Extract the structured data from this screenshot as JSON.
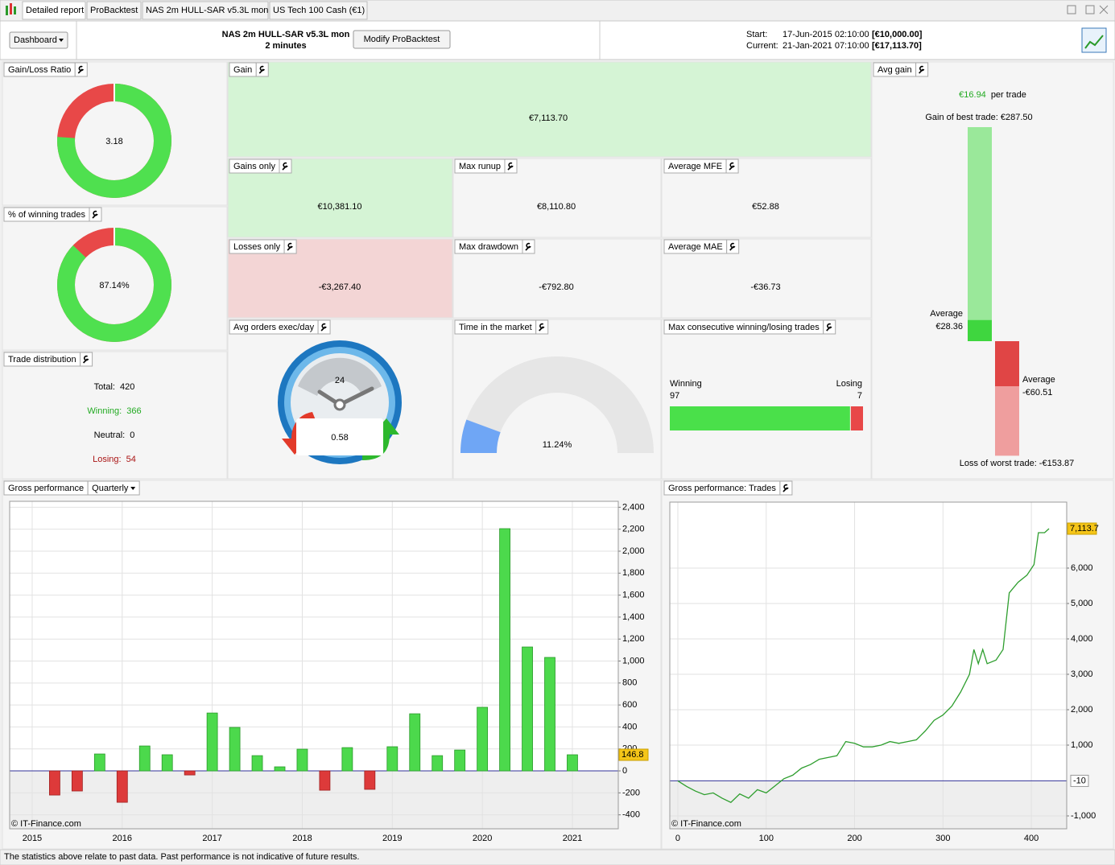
{
  "tabs": [
    "Detailed report",
    "ProBacktest",
    "NAS 2m HULL-SAR v5.3L mon",
    "US Tech 100 Cash (€1)"
  ],
  "toolbar": {
    "dashboard_button": "Dashboard",
    "strategy": "NAS 2m HULL-SAR v5.3L mon",
    "timeframe": "2 minutes",
    "modify_button": "Modify ProBacktest",
    "start_label": "Start:",
    "start_date": "17-Jun-2015 02:10:00",
    "start_capital": "[€10,000.00]",
    "current_label": "Current:",
    "current_date": "21-Jan-2021 07:10:00",
    "current_capital": "[€17,113.70]"
  },
  "gain_loss_ratio": {
    "title": "Gain/Loss Ratio",
    "value": 3.18
  },
  "winning_trades": {
    "title": "% of winning trades",
    "value": 87.14,
    "value_label": "87.14%"
  },
  "trade_distribution": {
    "title": "Trade distribution",
    "rows": [
      {
        "label": "Total:",
        "value": 420
      },
      {
        "label": "Winning:",
        "value": 366
      },
      {
        "label": "Neutral:",
        "value": 0
      },
      {
        "label": "Losing:",
        "value": 54
      }
    ]
  },
  "gain": {
    "title": "Gain",
    "value": "€7,113.70"
  },
  "gains_only": {
    "title": "Gains only",
    "value": "€10,381.10"
  },
  "max_runup": {
    "title": "Max runup",
    "value": "€8,110.80"
  },
  "average_mfe": {
    "title": "Average MFE",
    "value": "€52.88"
  },
  "losses_only": {
    "title": "Losses only",
    "value": "-€3,267.40"
  },
  "max_drawdown": {
    "title": "Max drawdown",
    "value": "-€792.80"
  },
  "average_mae": {
    "title": "Average MAE",
    "value": "-€36.73"
  },
  "avg_orders": {
    "title": "Avg orders exec/day",
    "clock": "24",
    "value": 0.58
  },
  "time_in_market": {
    "title": "Time in the market",
    "value": 11.24,
    "value_label": "11.24%"
  },
  "max_consecutive": {
    "title": "Max consecutive winning/losing trades",
    "winning_label": "Winning",
    "winning": 97,
    "losing_label": "Losing",
    "losing": 7
  },
  "avg_gain": {
    "title": "Avg gain",
    "value": "€16.94",
    "suffix": "per trade",
    "best": {
      "value": 287.5,
      "label": "Gain of best trade: €287.50"
    },
    "average_win": {
      "title": "Average",
      "value": 28.36,
      "label": "€28.36"
    },
    "average_loss": {
      "title": "Average",
      "value": -60.51,
      "label": "-€60.51"
    },
    "worst": {
      "value": -153.87,
      "label": "Loss of worst trade: -€153.87"
    }
  },
  "gross_performance": {
    "type": "bar",
    "title": "Gross performance",
    "period": "Quarterly",
    "x": [
      2015.25,
      2015.5,
      2015.75,
      2016,
      2016.25,
      2016.5,
      2016.75,
      2017,
      2017.25,
      2017.5,
      2017.75,
      2018,
      2018.25,
      2018.5,
      2018.75,
      2019,
      2019.25,
      2019.5,
      2019.75,
      2020,
      2020.25,
      2020.5,
      2020.75,
      2021
    ],
    "values": [
      -220,
      -183,
      154,
      -286,
      227,
      147,
      -37,
      527,
      396,
      139,
      37,
      198,
      -176,
      212,
      -168,
      220,
      520,
      139,
      190,
      579,
      2205,
      1128,
      1033,
      146.8
    ],
    "xlim": [
      2014.75,
      2021.51
    ],
    "xticks": [
      2015,
      2016,
      2017,
      2018,
      2019,
      2020,
      2021
    ],
    "ylim": [
      -527,
      2454
    ],
    "yticks": [
      {
        "value": 2400,
        "label": "2,400"
      },
      {
        "value": 2200,
        "label": "2,200"
      },
      {
        "value": 2000,
        "label": "2,000"
      },
      {
        "value": 1800,
        "label": "1,800"
      },
      {
        "value": 1600,
        "label": "1,600"
      },
      {
        "value": 1400,
        "label": "1,400"
      },
      {
        "value": 1200,
        "label": "1,200"
      },
      {
        "value": 1000,
        "label": "1,000"
      },
      800,
      600,
      400,
      200,
      0,
      -200,
      -400
    ],
    "grid": true,
    "color": "#4cd94c",
    "negative_color": "#dd3a3a",
    "last_value": {
      "value": 146.8,
      "label": "146.8"
    },
    "credit": "© IT-Finance.com"
  },
  "trades_performance": {
    "type": "line",
    "title": "Gross performance: Trades",
    "x": [
      0,
      10,
      20,
      30,
      40,
      50,
      60,
      70,
      80,
      90,
      100,
      110,
      120,
      130,
      140,
      150,
      160,
      170,
      180,
      190,
      200,
      210,
      220,
      230,
      240,
      250,
      260,
      270,
      280,
      290,
      300,
      310,
      320,
      330,
      335,
      340,
      345,
      350,
      360,
      368,
      375,
      385,
      395,
      403,
      408,
      415,
      420
    ],
    "values": [
      -10,
      -170,
      -300,
      -400,
      -350,
      -500,
      -620,
      -380,
      -500,
      -260,
      -350,
      -150,
      50,
      150,
      350,
      450,
      600,
      650,
      700,
      1100,
      1050,
      950,
      950,
      1000,
      1100,
      1050,
      1100,
      1150,
      1400,
      1700,
      1850,
      2100,
      2500,
      3000,
      3700,
      3300,
      3700,
      3300,
      3400,
      3700,
      5300,
      5600,
      5800,
      6100,
      7000,
      7000,
      7113.7
    ],
    "xlim": [
      -9.1,
      440
    ],
    "xticks": [
      0,
      100,
      200,
      300,
      400
    ],
    "ylim": [
      -1364,
      7864
    ],
    "yticks": [
      {
        "value": 6000,
        "label": "6,000"
      },
      {
        "value": 5000,
        "label": "5,000"
      },
      {
        "value": 4000,
        "label": "4,000"
      },
      {
        "value": 3000,
        "label": "3,000"
      },
      {
        "value": 2000,
        "label": "2,000"
      },
      {
        "value": 1000,
        "label": "1,000"
      },
      {
        "value": -1000,
        "label": "-1,000"
      }
    ],
    "grid": true,
    "color": "#2e9e2e",
    "last_value": {
      "value": 7113.7,
      "label": "7,113.7"
    },
    "baseline": {
      "value": -10,
      "label": "-10"
    },
    "credit": "© IT-Finance.com"
  },
  "footer": "The statistics above relate to past data. Past performance is not indicative of future results."
}
